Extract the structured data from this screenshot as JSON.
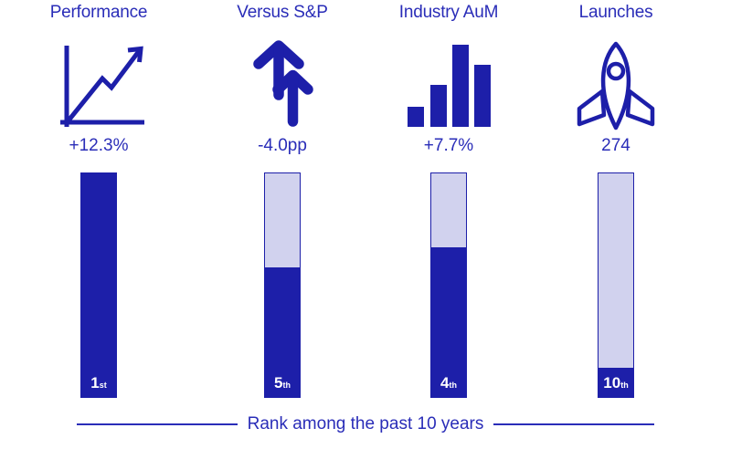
{
  "colors": {
    "primary_dark": "#1d1fa9",
    "light_fill": "#d1d2ee",
    "text_blue": "#2a2db8",
    "rank_label_white": "#ffffff",
    "background": "#ffffff"
  },
  "columns": [
    {
      "title": "Performance",
      "icon": "trend-line-icon",
      "value": "+12.3%",
      "rank": {
        "number": "1",
        "suffix": "st",
        "label": "1st"
      },
      "fill_percent": 100
    },
    {
      "title": "Versus S&P",
      "icon": "double-up-arrows-icon",
      "value": "-4.0pp",
      "rank": {
        "number": "5",
        "suffix": "th",
        "label": "5th"
      },
      "fill_percent": 58
    },
    {
      "title": "Industry AuM",
      "icon": "bar-chart-icon",
      "value": "+7.7%",
      "rank": {
        "number": "4",
        "suffix": "th",
        "label": "4th"
      },
      "fill_percent": 67
    },
    {
      "title": "Launches",
      "icon": "rocket-icon",
      "value": "274",
      "rank": {
        "number": "10",
        "suffix": "th",
        "label": "10th"
      },
      "fill_percent": 13
    }
  ],
  "footer": {
    "caption": "Rank among the past 10 years"
  },
  "chart_data": {
    "type": "bar",
    "categories": [
      "Performance",
      "Versus S&P",
      "Industry AuM",
      "Launches"
    ],
    "metric_labels": [
      "+12.3%",
      "-4.0pp",
      "+7.7%",
      "274"
    ],
    "metric_values": [
      12.3,
      -4.0,
      7.7,
      274
    ],
    "ranks": [
      "1st",
      "5th",
      "4th",
      "10th"
    ],
    "rank_values": [
      1,
      5,
      4,
      10
    ],
    "rank_fill_fraction": [
      1.0,
      0.58,
      0.67,
      0.13
    ],
    "caption": "Rank among the past 10 years",
    "ylim": [
      0,
      1
    ],
    "grid": false,
    "legend_position": "none"
  }
}
